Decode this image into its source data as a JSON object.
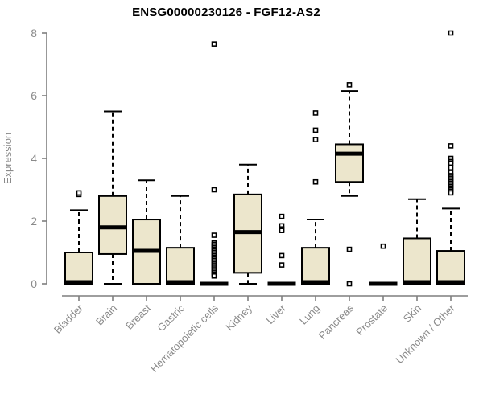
{
  "chart_data": {
    "type": "boxplot",
    "title": "ENSG00000230126 - FGF12-AS2",
    "ylabel": "Expression",
    "xlabel": "",
    "ylim": [
      0,
      8
    ],
    "yticks": [
      0,
      2,
      4,
      6,
      8
    ],
    "grid": false,
    "legend": false,
    "categories": [
      "Bladder",
      "Brain",
      "Breast",
      "Gastric",
      "Hematopoietic cells",
      "Kidney",
      "Liver",
      "Lung",
      "Pancreas",
      "Prostate",
      "Skin",
      "Unknown / Other"
    ],
    "boxes": [
      {
        "category": "Bladder",
        "whisker_low": 0,
        "q1": 0,
        "median": 0.05,
        "q3": 1.0,
        "whisker_high": 2.35,
        "outliers": [
          2.85,
          2.9
        ]
      },
      {
        "category": "Brain",
        "whisker_low": 0,
        "q1": 0.95,
        "median": 1.8,
        "q3": 2.8,
        "whisker_high": 5.5,
        "outliers": []
      },
      {
        "category": "Breast",
        "whisker_low": 0,
        "q1": 0,
        "median": 1.05,
        "q3": 2.05,
        "whisker_high": 3.3,
        "outliers": []
      },
      {
        "category": "Gastric",
        "whisker_low": 0,
        "q1": 0,
        "median": 0.05,
        "q3": 1.15,
        "whisker_high": 2.8,
        "outliers": []
      },
      {
        "category": "Hematopoietic cells",
        "whisker_low": 0,
        "q1": 0,
        "median": 0,
        "q3": 0,
        "whisker_high": 0,
        "outliers": [
          7.65,
          3.0,
          1.55,
          1.3,
          1.25,
          1.2,
          1.15,
          1.1,
          1.05,
          1.0,
          0.95,
          0.9,
          0.85,
          0.8,
          0.75,
          0.7,
          0.65,
          0.6,
          0.55,
          0.5,
          0.45,
          0.4,
          0.35,
          0.3,
          0.25
        ]
      },
      {
        "category": "Kidney",
        "whisker_low": 0,
        "q1": 0.35,
        "median": 1.65,
        "q3": 2.85,
        "whisker_high": 3.8,
        "outliers": []
      },
      {
        "category": "Liver",
        "whisker_low": 0,
        "q1": 0,
        "median": 0,
        "q3": 0,
        "whisker_high": 0,
        "outliers": [
          2.15,
          1.85,
          1.75,
          1.7,
          0.9,
          0.6
        ]
      },
      {
        "category": "Lung",
        "whisker_low": 0,
        "q1": 0,
        "median": 0.05,
        "q3": 1.15,
        "whisker_high": 2.05,
        "outliers": [
          5.45,
          4.9,
          4.6,
          3.25
        ]
      },
      {
        "category": "Pancreas",
        "whisker_low": 2.8,
        "q1": 3.25,
        "median": 4.15,
        "q3": 4.45,
        "whisker_high": 6.15,
        "outliers": [
          6.35,
          1.1,
          0
        ]
      },
      {
        "category": "Prostate",
        "whisker_low": 0,
        "q1": 0,
        "median": 0,
        "q3": 0,
        "whisker_high": 0,
        "outliers": [
          1.2
        ]
      },
      {
        "category": "Skin",
        "whisker_low": 0,
        "q1": 0,
        "median": 0.05,
        "q3": 1.45,
        "whisker_high": 2.7,
        "outliers": []
      },
      {
        "category": "Unknown / Other",
        "whisker_low": 0,
        "q1": 0,
        "median": 0.05,
        "q3": 1.05,
        "whisker_high": 2.4,
        "outliers": [
          8.0,
          4.4,
          4.0,
          3.9,
          3.85,
          3.7,
          3.55,
          3.45,
          3.4,
          3.35,
          3.3,
          3.25,
          3.2,
          3.15,
          3.1,
          3.05,
          3.0,
          2.95,
          2.9
        ]
      }
    ],
    "colors": {
      "box_fill": "#ece6cc",
      "box_border": "#000000",
      "median": "#000000",
      "whisker": "#000000",
      "outlier_fill": "#ffffff",
      "axis": "#7f7f7f",
      "label": "#8a8a8a",
      "title": "#000000",
      "background": "#ffffff"
    }
  }
}
